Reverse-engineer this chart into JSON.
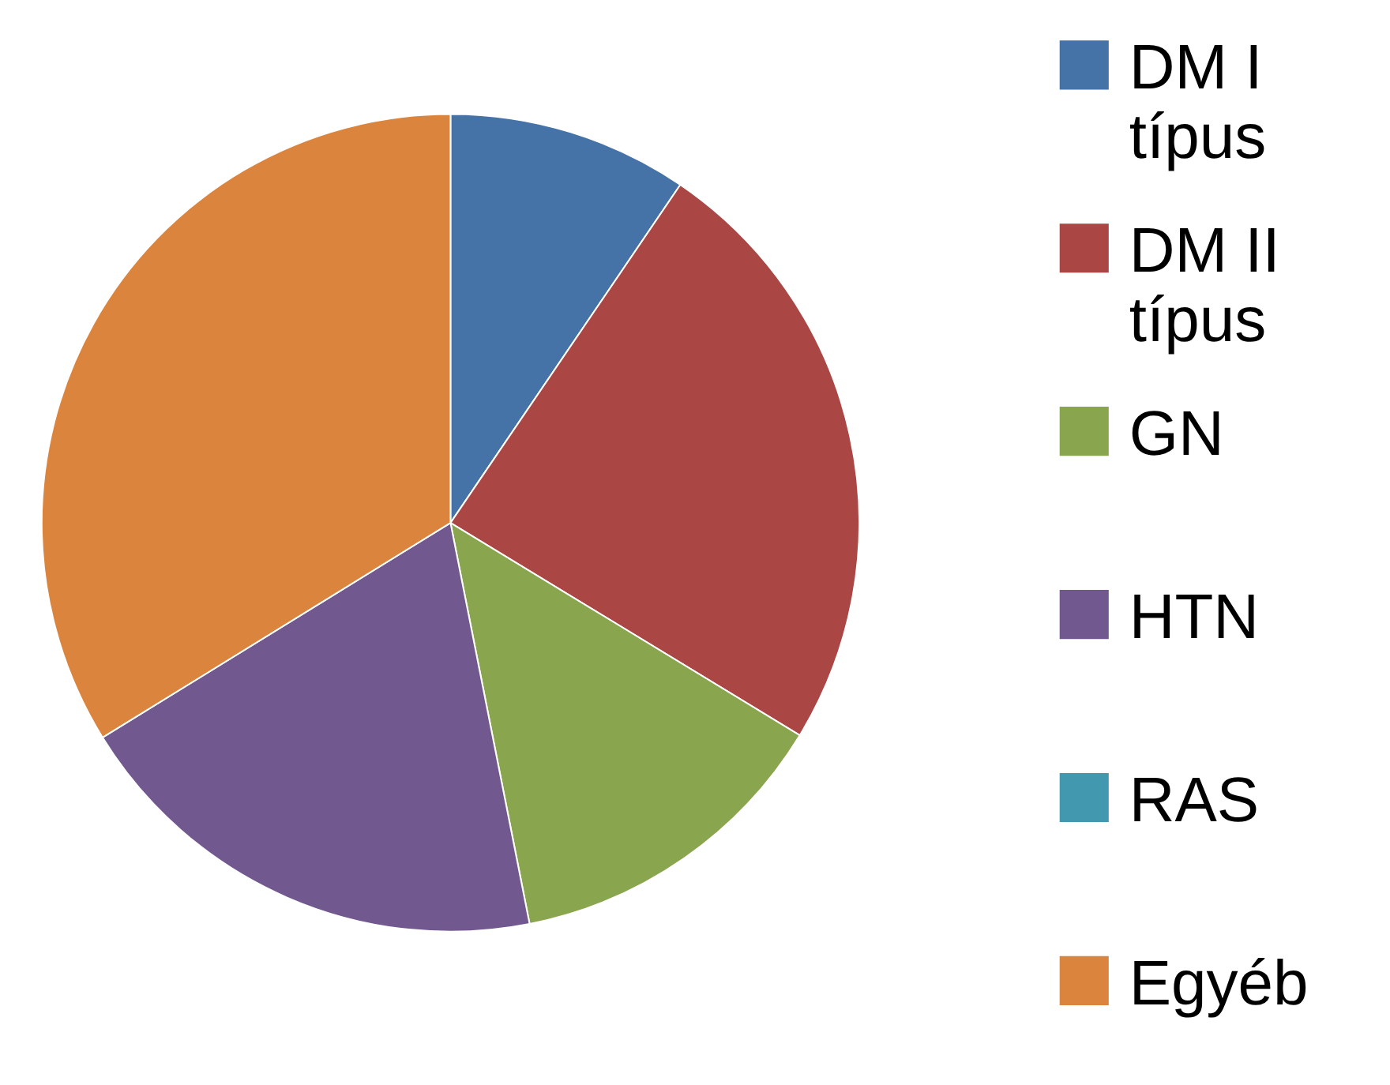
{
  "chart_data": {
    "type": "pie",
    "categories": [
      "DM I típus",
      "DM II típus",
      "GN",
      "HTN",
      "RAS",
      "Egyéb"
    ],
    "values": [
      9.5,
      24.2,
      13.2,
      19.3,
      0,
      33.8
    ],
    "colors": [
      "#4572a7",
      "#aa4643",
      "#89a54e",
      "#71588f",
      "#4198af",
      "#db843d"
    ],
    "legend": "right"
  }
}
